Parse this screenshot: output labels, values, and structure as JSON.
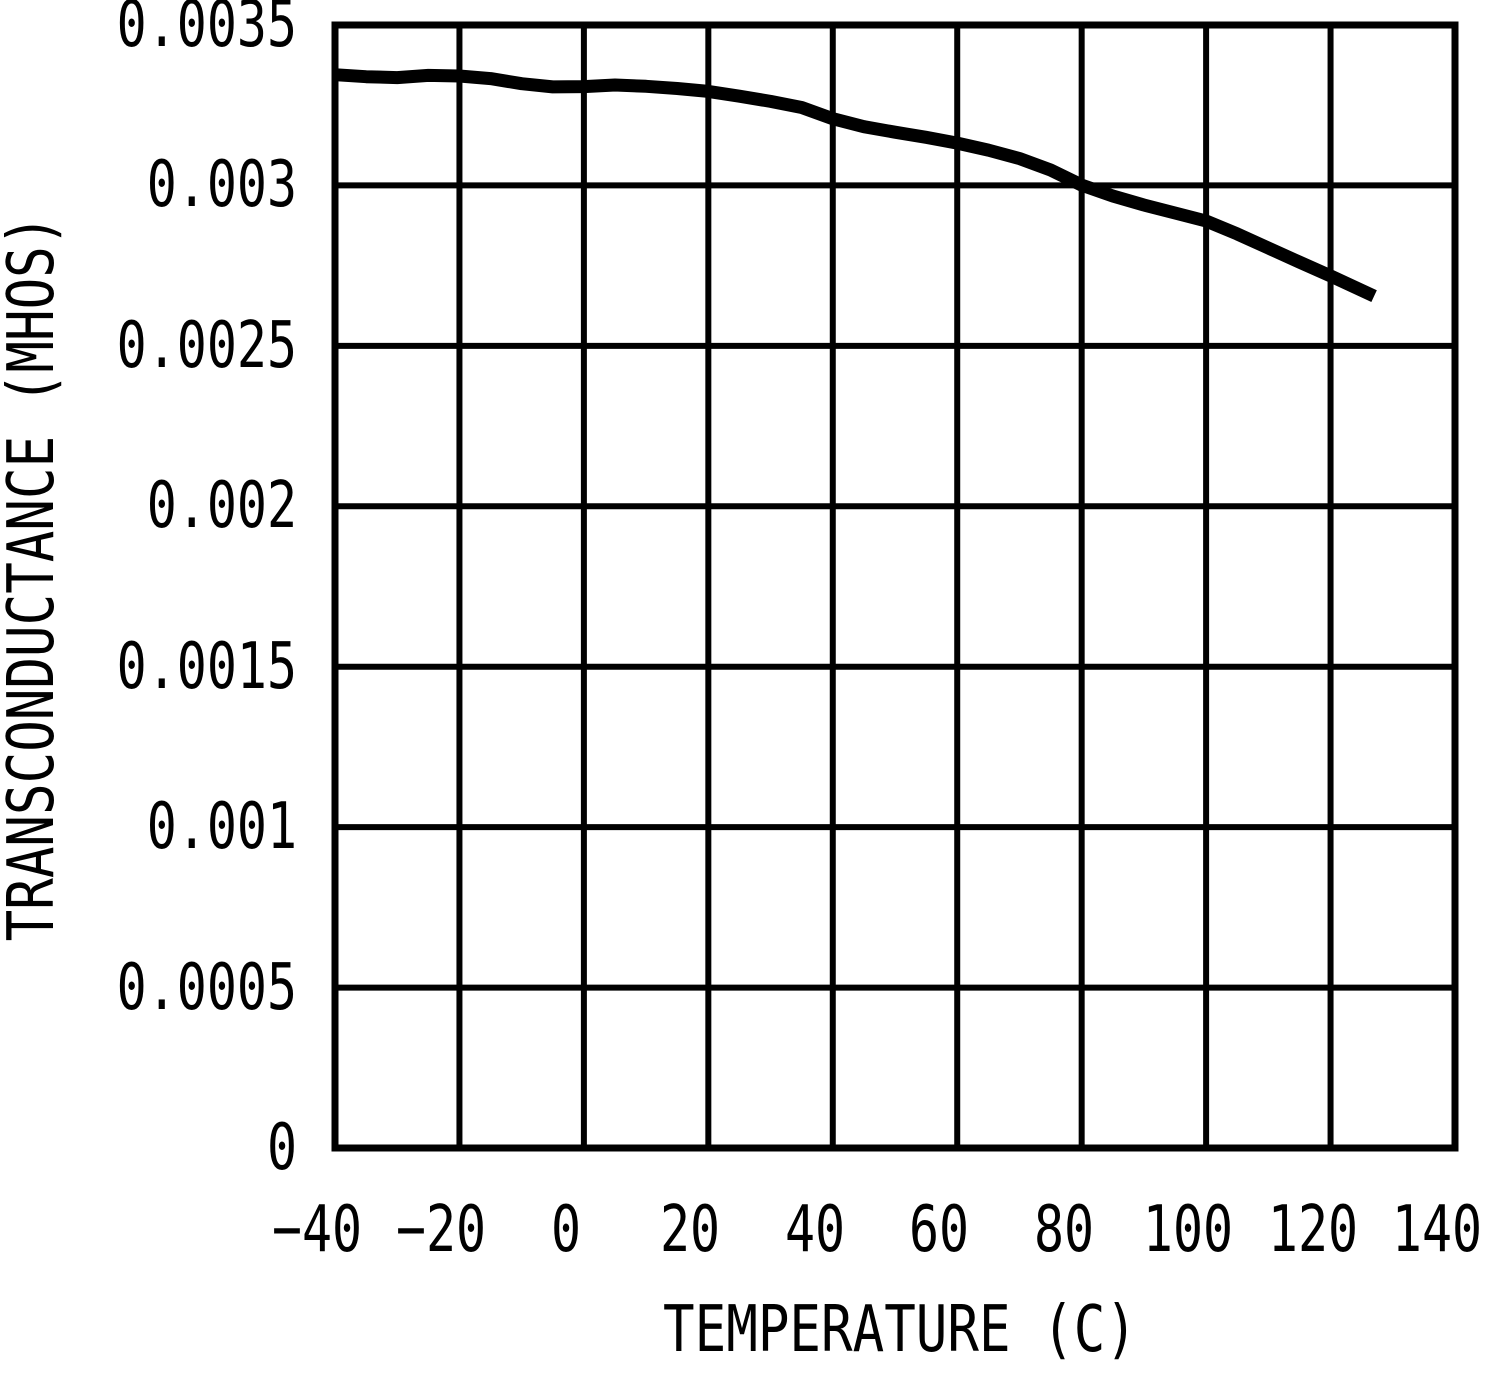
{
  "chart_data": {
    "type": "line",
    "title": "",
    "xlabel": "TEMPERATURE (C)",
    "ylabel": "TRANSCONDUCTANCE (MHOS)",
    "xlim": [
      -40,
      140
    ],
    "ylim": [
      0,
      0.0035
    ],
    "x_ticks": [
      -40,
      -20,
      0,
      20,
      40,
      60,
      80,
      100,
      120,
      140
    ],
    "x_tick_labels": [
      "−40",
      "−20",
      "0",
      "20",
      "40",
      "60",
      "80",
      "100",
      "120",
      "140"
    ],
    "y_ticks": [
      0,
      0.0005,
      0.001,
      0.0015,
      0.002,
      0.0025,
      0.003,
      0.0035
    ],
    "y_tick_labels": [
      "0",
      "0.0005",
      "0.001",
      "0.0015",
      "0.002",
      "0.0025",
      "0.003",
      "0.0035"
    ],
    "grid": true,
    "legend": false,
    "series": [
      {
        "name": "transconductance",
        "points": [
          [
            -40,
            0.003345
          ],
          [
            -35,
            0.003339
          ],
          [
            -30,
            0.003336
          ],
          [
            -25,
            0.003343
          ],
          [
            -20,
            0.003341
          ],
          [
            -15,
            0.003333
          ],
          [
            -10,
            0.003317
          ],
          [
            -5,
            0.003307
          ],
          [
            0,
            0.003308
          ],
          [
            5,
            0.003313
          ],
          [
            10,
            0.003309
          ],
          [
            15,
            0.003302
          ],
          [
            20,
            0.003293
          ],
          [
            25,
            0.003278
          ],
          [
            30,
            0.003262
          ],
          [
            35,
            0.003243
          ],
          [
            40,
            0.003208
          ],
          [
            45,
            0.003183
          ],
          [
            50,
            0.003166
          ],
          [
            55,
            0.00315
          ],
          [
            60,
            0.003132
          ],
          [
            65,
            0.00311
          ],
          [
            70,
            0.003084
          ],
          [
            75,
            0.003048
          ],
          [
            80,
            0.003001
          ],
          [
            85,
            0.002967
          ],
          [
            90,
            0.002939
          ],
          [
            95,
            0.002914
          ],
          [
            100,
            0.002889
          ],
          [
            105,
            0.002849
          ],
          [
            110,
            0.002805
          ],
          [
            115,
            0.002761
          ],
          [
            120,
            0.002718
          ],
          [
            127,
            0.002655
          ]
        ]
      }
    ],
    "colors": {
      "line": "#000000",
      "grid": "#000000",
      "background": "#ffffff"
    }
  }
}
